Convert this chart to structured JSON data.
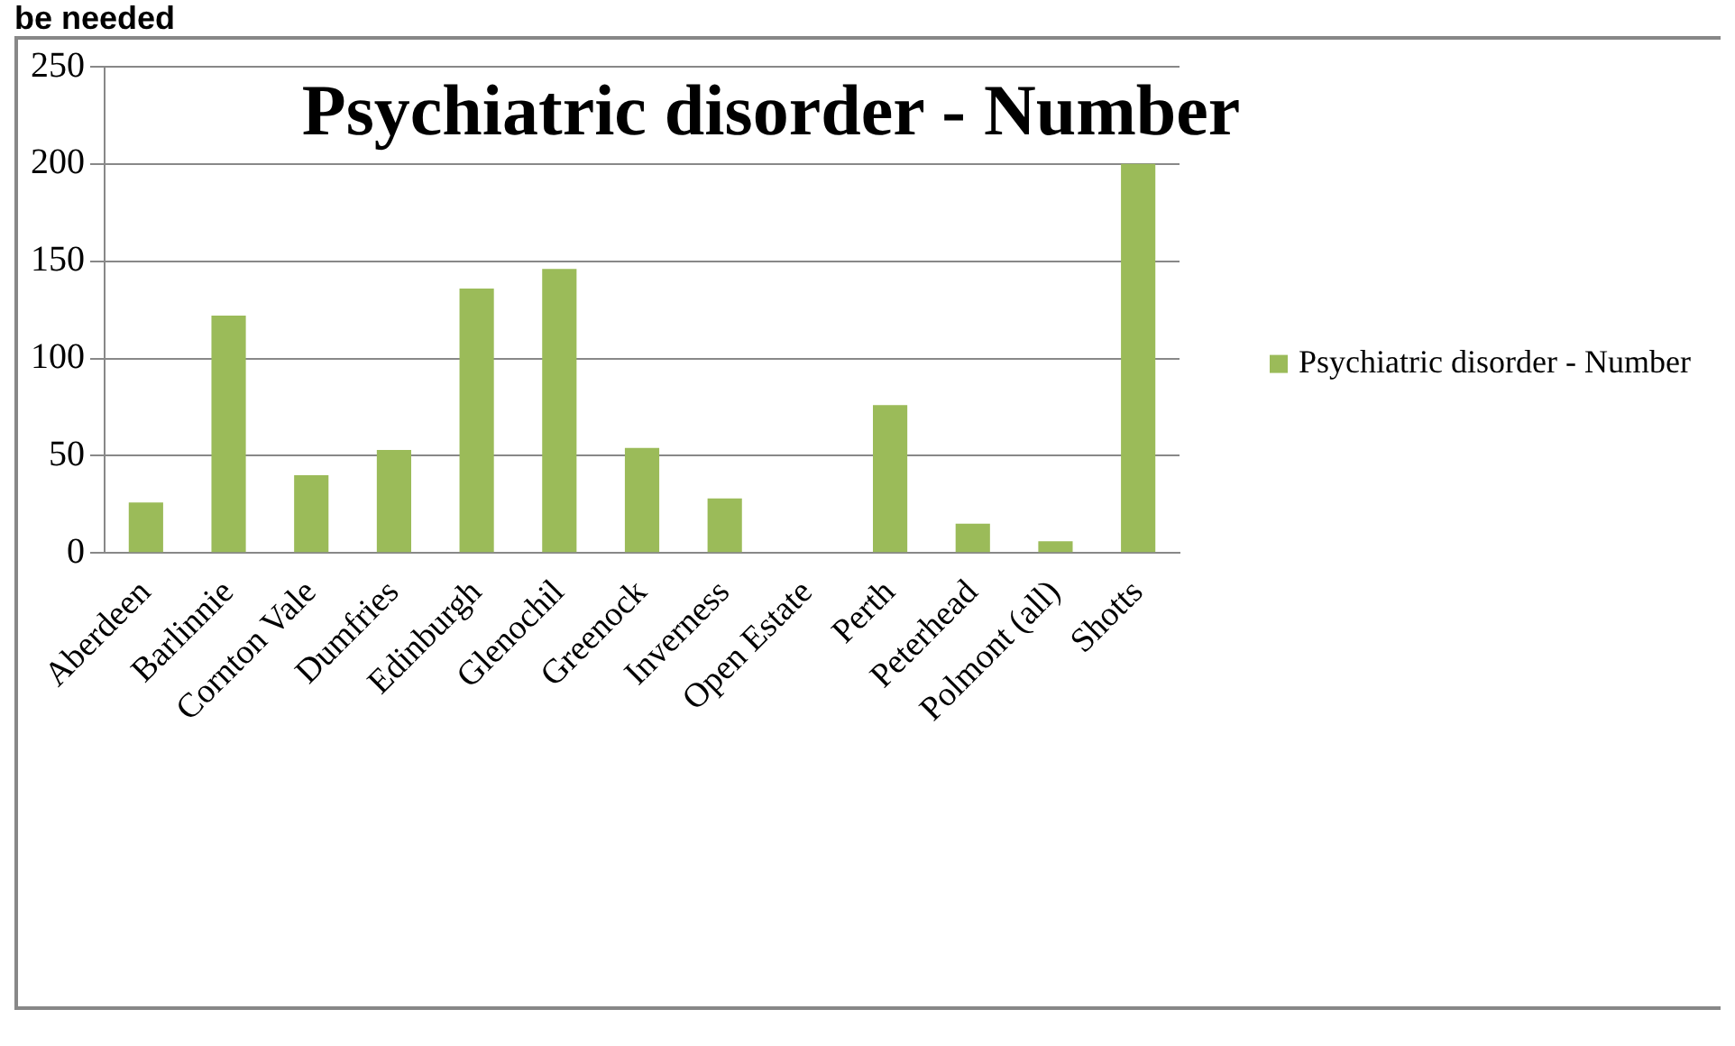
{
  "chart_data": {
    "type": "bar",
    "title": "Psychiatric disorder - Number",
    "annotations": [
      "be needed"
    ],
    "categories": [
      "Aberdeen",
      "Barlinnie",
      "Cornton Vale",
      "Dumfries",
      "Edinburgh",
      "Glenochil",
      "Greenock",
      "Inverness",
      "Open Estate",
      "Perth",
      "Peterhead",
      "Polmont (all)",
      "Shotts"
    ],
    "series": [
      {
        "name": "Psychiatric disorder - Number",
        "color": "#9bbb59",
        "values": [
          26,
          122,
          40,
          53,
          136,
          146,
          54,
          28,
          0,
          76,
          15,
          6,
          200
        ]
      }
    ],
    "ylim": [
      0,
      250
    ],
    "yticks": [
      0,
      50,
      100,
      150,
      200,
      250
    ],
    "grid": "y",
    "legend": "right"
  }
}
